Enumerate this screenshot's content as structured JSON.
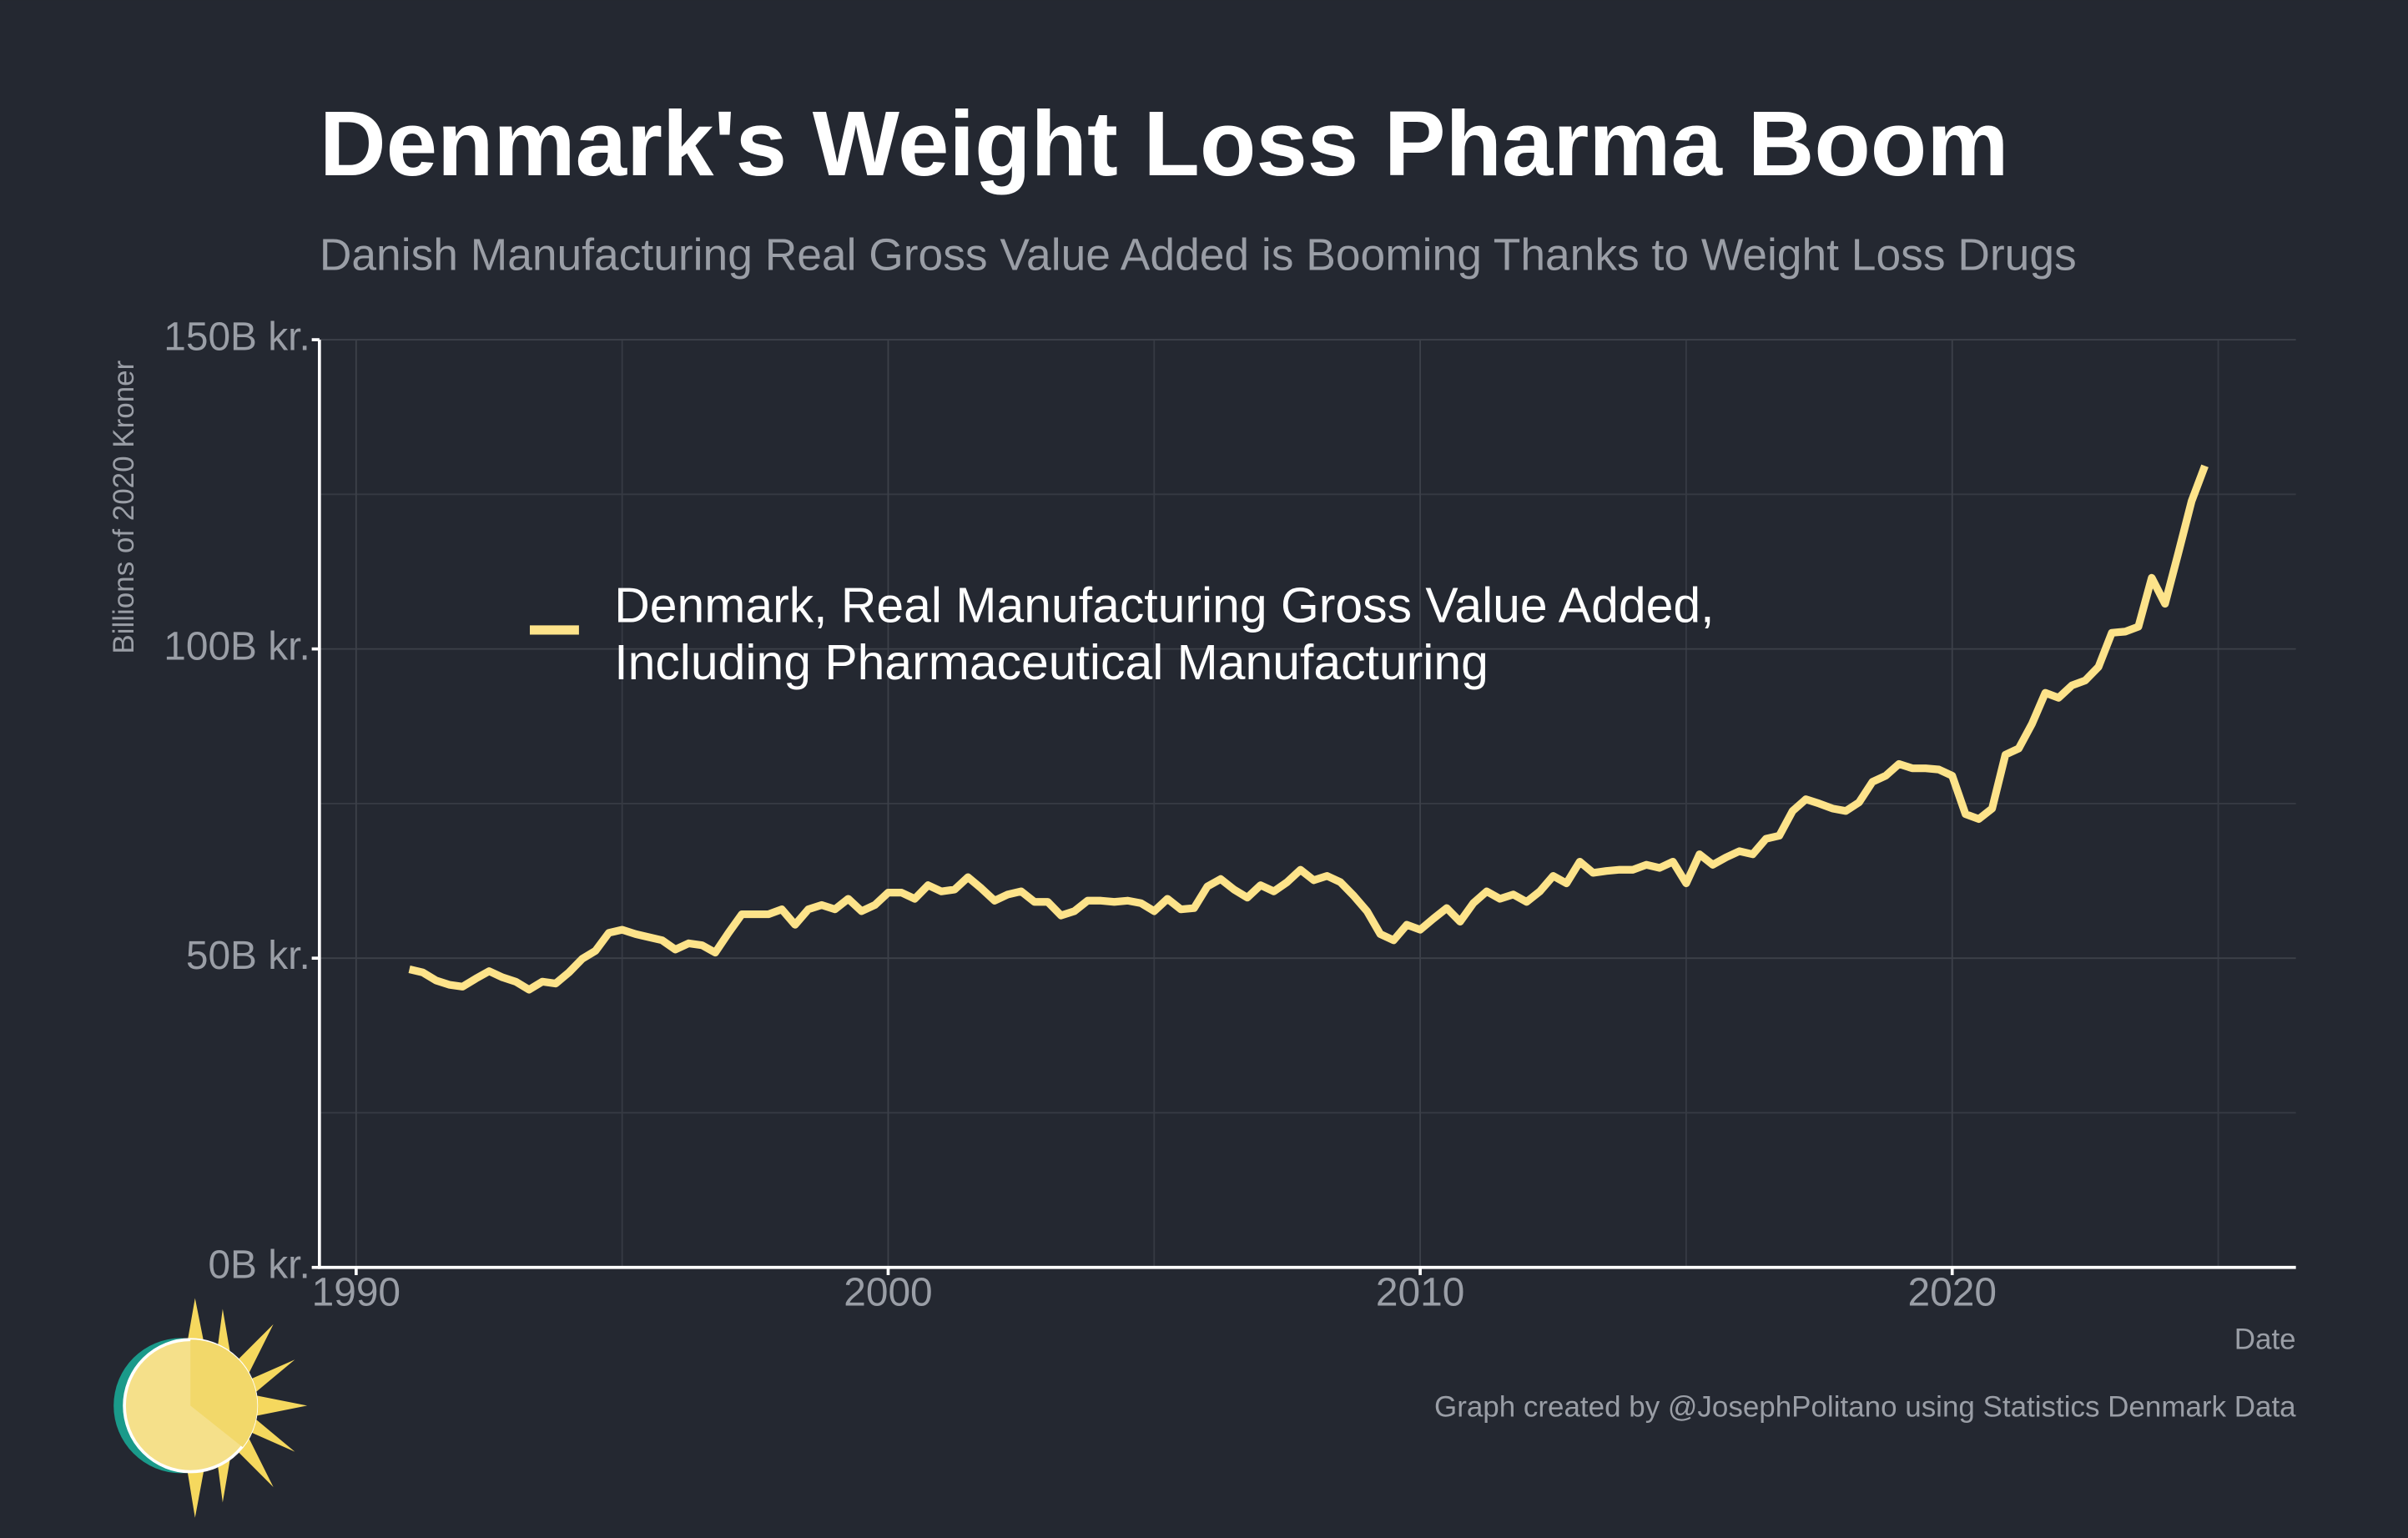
{
  "chart_data": {
    "type": "line",
    "title": "Denmark's Weight Loss Pharma Boom",
    "subtitle": "Danish Manufacturing Real Gross Value Added is Booming Thanks to Weight Loss Drugs",
    "ylabel": "Billions of 2020 Kroner",
    "xlabel": "Date",
    "caption": "Graph created by @JosephPolitano using Statistics Denmark Data",
    "x": [
      1991,
      1991.25,
      1991.5,
      1991.75,
      1992,
      1992.25,
      1992.5,
      1992.75,
      1993,
      1993.25,
      1993.5,
      1993.75,
      1994,
      1994.25,
      1994.5,
      1994.75,
      1995,
      1995.25,
      1995.5,
      1995.75,
      1996,
      1996.25,
      1996.5,
      1996.75,
      1997,
      1997.25,
      1997.5,
      1997.75,
      1998,
      1998.25,
      1998.5,
      1998.75,
      1999,
      1999.25,
      1999.5,
      1999.75,
      2000,
      2000.25,
      2000.5,
      2000.75,
      2001,
      2001.25,
      2001.5,
      2001.75,
      2002,
      2002.25,
      2002.5,
      2002.75,
      2003,
      2003.25,
      2003.5,
      2003.75,
      2004,
      2004.25,
      2004.5,
      2004.75,
      2005,
      2005.25,
      2005.5,
      2005.75,
      2006,
      2006.25,
      2006.5,
      2006.75,
      2007,
      2007.25,
      2007.5,
      2007.75,
      2008,
      2008.25,
      2008.5,
      2008.75,
      2009,
      2009.25,
      2009.5,
      2009.75,
      2010,
      2010.25,
      2010.5,
      2010.75,
      2011,
      2011.25,
      2011.5,
      2011.75,
      2012,
      2012.25,
      2012.5,
      2012.75,
      2013,
      2013.25,
      2013.5,
      2013.75,
      2014,
      2014.25,
      2014.5,
      2014.75,
      2015,
      2015.25,
      2015.5,
      2015.75,
      2016,
      2016.25,
      2016.5,
      2016.75,
      2017,
      2017.25,
      2017.5,
      2017.75,
      2018,
      2018.25,
      2018.5,
      2018.75,
      2019,
      2019.25,
      2019.5,
      2019.75,
      2020,
      2020.25,
      2020.5,
      2020.75,
      2021,
      2021.25,
      2021.5,
      2021.75,
      2022,
      2022.25,
      2022.5,
      2022.75,
      2023,
      2023.25,
      2023.5,
      2023.75,
      2024,
      2024.25,
      2024.5,
      2024.75
    ],
    "series": [
      {
        "name": "Denmark, Real Manufacturing Gross Value Added, Including Pharmaceutical Manufacturing",
        "color": "#fde38a",
        "values": [
          48.2,
          47.7,
          46.4,
          45.7,
          45.4,
          46.7,
          47.9,
          46.9,
          46.2,
          44.9,
          46.2,
          45.9,
          47.7,
          49.9,
          51.2,
          54.1,
          54.6,
          53.9,
          53.4,
          52.9,
          51.4,
          52.4,
          52.1,
          50.9,
          54.1,
          57.1,
          57.1,
          57.1,
          57.9,
          55.4,
          57.9,
          58.6,
          57.9,
          59.6,
          57.6,
          58.6,
          60.6,
          60.6,
          59.6,
          61.8,
          60.8,
          61.1,
          63.1,
          61.3,
          59.3,
          60.3,
          60.8,
          59.1,
          59.1,
          56.9,
          57.6,
          59.3,
          59.3,
          59.1,
          59.3,
          58.9,
          57.6,
          59.6,
          57.9,
          58.1,
          61.6,
          62.8,
          61.1,
          59.8,
          61.8,
          60.8,
          62.3,
          64.3,
          62.6,
          63.3,
          62.3,
          60.1,
          57.6,
          53.9,
          52.9,
          55.4,
          54.6,
          56.4,
          58.1,
          55.9,
          58.9,
          60.8,
          59.6,
          60.3,
          59.1,
          60.8,
          63.3,
          62.1,
          65.6,
          63.8,
          64.1,
          64.3,
          64.3,
          65.1,
          64.6,
          65.6,
          62.1,
          66.8,
          65.1,
          66.3,
          67.3,
          66.8,
          69.3,
          69.8,
          73.8,
          75.7,
          75.0,
          74.2,
          73.8,
          75.2,
          78.5,
          79.5,
          81.4,
          80.7,
          80.7,
          80.5,
          79.5,
          73.3,
          72.5,
          74.2,
          82.9,
          83.9,
          87.9,
          92.9,
          92.1,
          94.1,
          94.9,
          97.1,
          102.6,
          102.8,
          103.6,
          111.5,
          107.3,
          115.5,
          123.9,
          129.6
        ]
      }
    ],
    "xlim": [
      1989.31,
      2026.46
    ],
    "xticks": [
      1990,
      2000,
      2010,
      2020
    ],
    "x_minor_ticks": [
      1995,
      2005,
      2015,
      2025
    ],
    "ylim": [
      0,
      150
    ],
    "yticks": [
      {
        "value": 0,
        "label": "0B kr."
      },
      {
        "value": 50,
        "label": "50B kr."
      },
      {
        "value": 100,
        "label": "100B kr."
      },
      {
        "value": 150,
        "label": "150B kr."
      }
    ],
    "y_minor_ticks": [
      25,
      75,
      125
    ],
    "grid": true,
    "legend": "left"
  }
}
